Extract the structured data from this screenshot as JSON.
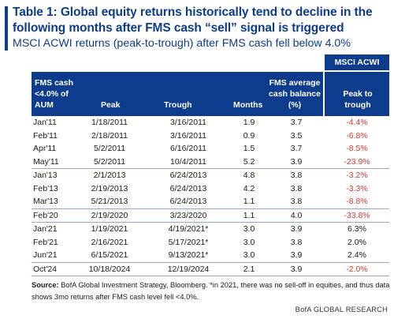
{
  "title": "Table 1: Global equity returns historically tend to decline in the following months after FMS cash “sell” signal is triggered",
  "subtitle": "MSCI ACWI returns (peak-to-trough) after FMS cash fell below 4.0%",
  "table": {
    "group_header": "MSCI ACWI",
    "headers": {
      "fms": [
        "FMS cash",
        "<4.0% of",
        "AUM"
      ],
      "peak": "Peak",
      "trough": "Trough",
      "months": "Months",
      "cash": [
        "FMS average",
        "cash balance",
        "(%)"
      ],
      "ret": [
        "Peak to",
        "trough"
      ]
    },
    "groups": [
      [
        {
          "fms": "Jan'11",
          "peak": "1/18/2011",
          "trough": "3/16/2011",
          "months": "1.9",
          "cash": "3.7",
          "ret": "-4.4%"
        },
        {
          "fms": "Feb'11",
          "peak": "2/18/2011",
          "trough": "3/16/2011",
          "months": "0.9",
          "cash": "3.5",
          "ret": "-6.8%"
        },
        {
          "fms": "Apr'11",
          "peak": "5/2/2011",
          "trough": "6/16/2011",
          "months": "1.5",
          "cash": "3.7",
          "ret": "-8.5%"
        },
        {
          "fms": "May'11",
          "peak": "5/2/2011",
          "trough": "10/4/2011",
          "months": "5.2",
          "cash": "3.9",
          "ret": "-23.9%"
        }
      ],
      [
        {
          "fms": "Jan'13",
          "peak": "2/1/2013",
          "trough": "6/24/2013",
          "months": "4.8",
          "cash": "3.8",
          "ret": "-3.2%"
        },
        {
          "fms": "Feb'13",
          "peak": "2/19/2013",
          "trough": "6/24/2013",
          "months": "4.2",
          "cash": "3.8",
          "ret": "-3.3%"
        },
        {
          "fms": "Mar'13",
          "peak": "5/21/2013",
          "trough": "6/24/2013",
          "months": "1.1",
          "cash": "3.8",
          "ret": "-8.8%"
        }
      ],
      [
        {
          "fms": "Feb'20",
          "peak": "2/19/2020",
          "trough": "3/23/2020",
          "months": "1.1",
          "cash": "4.0",
          "ret": "-33.8%"
        }
      ],
      [
        {
          "fms": "Jan'21",
          "peak": "1/19/2021",
          "trough": "4/19/2021*",
          "months": "3.0",
          "cash": "3.9",
          "ret": "6.3%"
        },
        {
          "fms": "Feb'21",
          "peak": "2/16/2021",
          "trough": "5/17/2021*",
          "months": "3.0",
          "cash": "3.8",
          "ret": "2.0%"
        },
        {
          "fms": "Jun'21",
          "peak": "6/15/2021",
          "trough": "9/13/2021*",
          "months": "3.0",
          "cash": "3.9",
          "ret": "2.4%"
        }
      ],
      [
        {
          "fms": "Oct'24",
          "peak": "10/18/2024",
          "trough": "12/19/2024",
          "months": "2.1",
          "cash": "3.9",
          "ret": "-2.0%"
        }
      ]
    ]
  },
  "source": {
    "label": "Source:",
    "text": " BofA Global Investment Strategy, Bloomberg. *in 2021, there was no sell-off in equities, and thus data shows 3mo returns after FMS cash level fell <4.0%."
  },
  "credit": "BofA GLOBAL RESEARCH",
  "colors": {
    "brand": "#0d3c8c",
    "negative": "#d43a2f"
  }
}
